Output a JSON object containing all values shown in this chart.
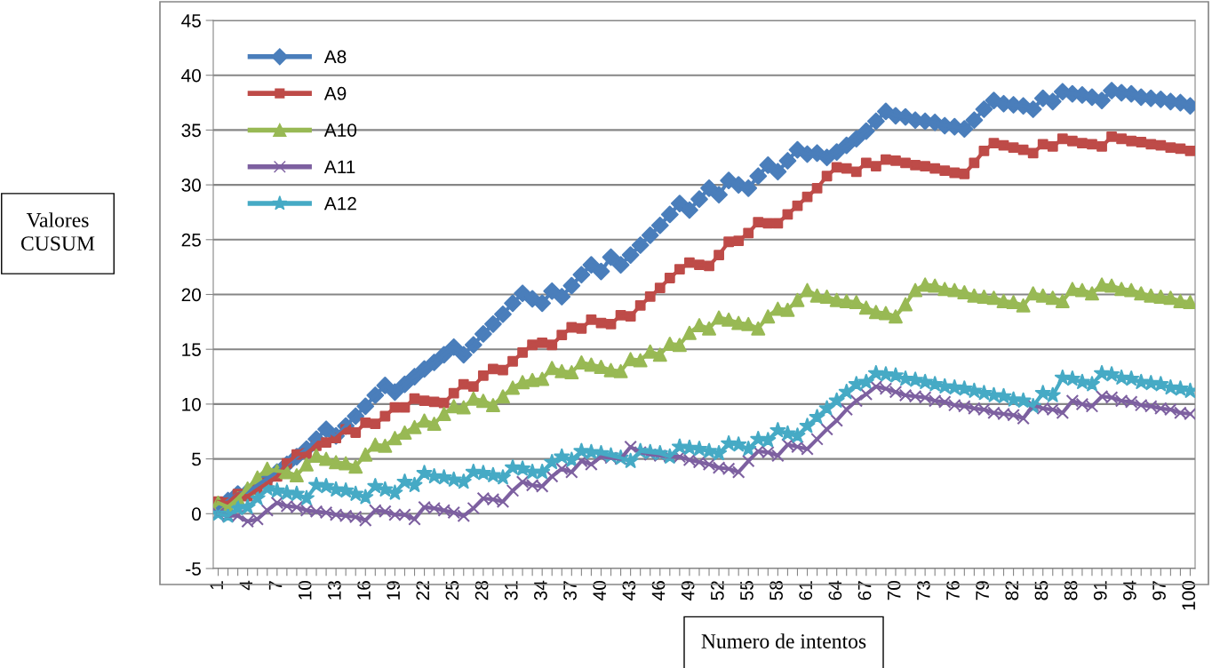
{
  "chart_data": {
    "type": "line",
    "xlabel": "Numero de intentos",
    "ylabel": "Valores\nCUSUM",
    "categories": [
      "1",
      null,
      null,
      "4",
      null,
      null,
      "7",
      null,
      null,
      "10",
      null,
      null,
      "13",
      null,
      null,
      "16",
      null,
      null,
      "19",
      null,
      null,
      "22",
      null,
      null,
      "25",
      null,
      null,
      "28",
      null,
      null,
      "31",
      null,
      null,
      "34",
      null,
      null,
      "37",
      null,
      null,
      "40",
      null,
      null,
      "43",
      null,
      null,
      "46",
      null,
      null,
      "49",
      null,
      null,
      "52",
      null,
      null,
      "55",
      null,
      null,
      "58",
      null,
      null,
      "61",
      null,
      null,
      "64",
      null,
      null,
      "67",
      null,
      null,
      "70",
      null,
      null,
      "73",
      null,
      null,
      "76",
      null,
      null,
      "79",
      null,
      null,
      "82",
      null,
      null,
      "85",
      null,
      null,
      "88",
      null,
      null,
      "91",
      null,
      null,
      "94",
      null,
      null,
      "97",
      null,
      null,
      "100"
    ],
    "series": [
      {
        "name": "A8",
        "color": "#4a7ebb",
        "marker": "diamond",
        "values": [
          0.5,
          1.2,
          1.8,
          2.0,
          2.6,
          3.2,
          3.8,
          4.5,
          5.2,
          5.9,
          6.8,
          7.7,
          7.1,
          8.0,
          8.9,
          9.8,
          10.8,
          11.7,
          11.1,
          11.8,
          12.5,
          13.2,
          13.8,
          14.5,
          15.2,
          14.5,
          15.4,
          16.4,
          17.3,
          18.2,
          19.2,
          20.1,
          19.6,
          19.2,
          20.3,
          19.8,
          20.8,
          21.8,
          22.7,
          22.1,
          23.4,
          22.7,
          23.6,
          24.5,
          25.4,
          26.3,
          27.3,
          28.3,
          27.7,
          28.7,
          29.7,
          29.1,
          30.4,
          30.0,
          29.7,
          30.8,
          31.8,
          31.2,
          32.2,
          33.2,
          32.8,
          32.9,
          32.5,
          33.0,
          33.6,
          34.2,
          34.9,
          35.8,
          36.7,
          36.3,
          36.2,
          35.9,
          35.8,
          35.7,
          35.4,
          35.3,
          35.1,
          35.9,
          36.9,
          37.7,
          37.4,
          37.3,
          37.2,
          36.9,
          37.9,
          37.6,
          38.5,
          38.3,
          38.2,
          38.0,
          37.7,
          38.6,
          38.4,
          38.3,
          38.0,
          37.9,
          37.8,
          37.6,
          37.5,
          37.2
        ]
      },
      {
        "name": "A9",
        "color": "#be4b48",
        "marker": "square",
        "values": [
          1.1,
          1.0,
          1.8,
          1.6,
          2.2,
          2.8,
          3.4,
          4.6,
          5.4,
          5.5,
          6.2,
          6.5,
          6.9,
          7.7,
          7.4,
          8.3,
          8.2,
          8.9,
          9.7,
          9.7,
          10.5,
          10.3,
          10.2,
          10.1,
          11.0,
          11.8,
          11.6,
          12.6,
          13.2,
          13.1,
          13.9,
          14.7,
          15.4,
          15.6,
          15.4,
          16.3,
          17.0,
          16.9,
          17.7,
          17.4,
          17.3,
          18.1,
          18.0,
          19.0,
          19.8,
          20.6,
          21.5,
          22.3,
          22.9,
          22.7,
          22.6,
          23.6,
          24.8,
          24.9,
          25.6,
          26.6,
          26.5,
          26.5,
          27.3,
          28.1,
          28.9,
          29.7,
          30.8,
          31.6,
          31.5,
          31.2,
          32.0,
          31.7,
          32.3,
          32.2,
          32.0,
          31.8,
          31.7,
          31.5,
          31.3,
          31.1,
          31.0,
          32.0,
          33.1,
          33.8,
          33.6,
          33.4,
          33.2,
          32.9,
          33.7,
          33.5,
          34.2,
          34.0,
          33.8,
          33.7,
          33.5,
          34.4,
          34.2,
          34.0,
          33.9,
          33.7,
          33.6,
          33.4,
          33.3,
          33.1
        ]
      },
      {
        "name": "A10",
        "color": "#98b954",
        "marker": "triangle",
        "values": [
          1.0,
          0.6,
          1.4,
          2.3,
          3.3,
          4.1,
          3.9,
          3.8,
          3.5,
          4.5,
          5.3,
          5.0,
          4.7,
          4.6,
          4.3,
          5.4,
          6.3,
          6.2,
          6.9,
          7.4,
          7.9,
          8.5,
          8.2,
          9.1,
          9.8,
          9.7,
          10.5,
          10.3,
          9.9,
          10.7,
          11.5,
          12.0,
          12.2,
          12.3,
          13.3,
          13.0,
          12.9,
          13.8,
          13.6,
          13.4,
          13.1,
          13.0,
          14.1,
          14.0,
          14.8,
          14.5,
          15.5,
          15.4,
          16.5,
          17.2,
          16.9,
          17.9,
          17.7,
          17.4,
          17.3,
          16.9,
          18.0,
          18.7,
          18.6,
          19.5,
          20.4,
          19.9,
          19.8,
          19.5,
          19.4,
          19.3,
          18.8,
          18.4,
          18.3,
          18.0,
          19.1,
          20.4,
          20.9,
          20.8,
          20.5,
          20.4,
          20.2,
          19.9,
          19.8,
          19.7,
          19.4,
          19.3,
          19.0,
          20.1,
          19.9,
          19.7,
          19.4,
          20.5,
          20.4,
          20.1,
          20.9,
          20.8,
          20.5,
          20.4,
          20.1,
          19.9,
          19.8,
          19.7,
          19.4,
          19.3
        ]
      },
      {
        "name": "A11",
        "color": "#7d60a0",
        "marker": "cross",
        "values": [
          0,
          -0.2,
          -0.2,
          -0.7,
          -0.5,
          0.3,
          1.0,
          0.7,
          0.6,
          0.3,
          0.2,
          0.1,
          -0.1,
          -0.2,
          -0.3,
          -0.6,
          0.3,
          0.2,
          -0.1,
          -0.1,
          -0.5,
          0.6,
          0.5,
          0.3,
          0.1,
          -0.2,
          0.5,
          1.4,
          1.3,
          1.1,
          2.1,
          2.9,
          2.6,
          2.5,
          3.4,
          4.1,
          3.8,
          4.8,
          4.5,
          5.2,
          5.1,
          5.0,
          6.1,
          5.6,
          5.4,
          5.3,
          5.2,
          5.2,
          4.9,
          4.7,
          4.5,
          4.2,
          4.1,
          3.8,
          4.8,
          5.7,
          5.6,
          5.3,
          6.3,
          6.1,
          5.9,
          6.8,
          7.7,
          8.5,
          9.5,
          10.3,
          10.9,
          11.6,
          11.4,
          11.1,
          10.8,
          10.7,
          10.6,
          10.3,
          10.2,
          9.9,
          9.8,
          9.6,
          9.5,
          9.2,
          9.1,
          9.0,
          8.7,
          9.9,
          9.6,
          9.5,
          9.2,
          10.3,
          10.0,
          9.8,
          10.7,
          10.6,
          10.3,
          10.2,
          9.9,
          9.8,
          9.6,
          9.5,
          9.2,
          9.1
        ]
      },
      {
        "name": "A12",
        "color": "#46aac5",
        "marker": "star",
        "values": [
          0,
          -0.2,
          0.5,
          0.6,
          1.4,
          2.3,
          2.1,
          1.9,
          1.8,
          1.4,
          2.6,
          2.5,
          2.2,
          2.1,
          1.8,
          1.5,
          2.5,
          2.2,
          1.9,
          2.9,
          2.6,
          3.7,
          3.4,
          3.3,
          3.1,
          2.9,
          3.8,
          3.7,
          3.5,
          3.3,
          4.2,
          4.1,
          3.8,
          3.8,
          4.7,
          5.2,
          4.9,
          5.7,
          5.6,
          5.5,
          5.3,
          5.1,
          4.8,
          5.7,
          5.6,
          5.5,
          5.2,
          6.1,
          6.0,
          5.9,
          5.7,
          5.5,
          6.4,
          6.3,
          5.9,
          6.8,
          6.7,
          7.6,
          7.3,
          7.1,
          8.0,
          8.8,
          9.6,
          10.3,
          11.1,
          11.8,
          12.0,
          12.8,
          12.7,
          12.6,
          12.3,
          12.2,
          12.0,
          11.8,
          11.6,
          11.5,
          11.4,
          11.2,
          11.0,
          10.8,
          10.7,
          10.4,
          10.3,
          9.8,
          11.0,
          10.8,
          12.4,
          12.3,
          12.0,
          11.8,
          12.8,
          12.7,
          12.4,
          12.3,
          12.0,
          11.9,
          11.8,
          11.5,
          11.4,
          11.2
        ]
      }
    ],
    "ylim": [
      -5,
      45
    ],
    "yticks": [
      -5,
      0,
      5,
      10,
      15,
      20,
      25,
      30,
      35,
      40,
      45
    ],
    "grid": "y",
    "legend": "top left",
    "line_style": "solid"
  }
}
